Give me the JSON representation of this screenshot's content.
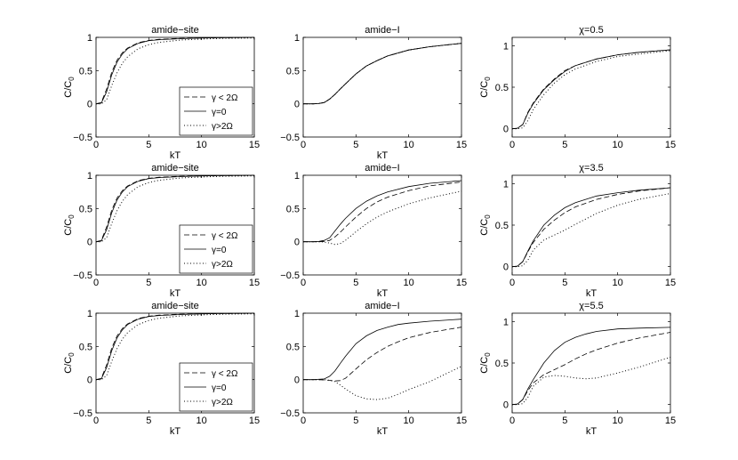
{
  "figure": {
    "legend_entries": [
      "γ < 2Ω",
      "γ=0",
      "γ>2Ω"
    ],
    "line_styles": {
      "γ < 2Ω": "dashed",
      "γ=0": "solid",
      "γ>2Ω": "dotted"
    }
  },
  "chart_data": [
    {
      "type": "line",
      "title": "amide−site",
      "xlabel": "kT",
      "ylabel": "C/C0",
      "xlim": [
        0,
        15
      ],
      "ylim": [
        -0.5,
        1
      ],
      "xticks": [
        "0",
        "5",
        "10",
        "15"
      ],
      "yticks": [
        "−0.5",
        "0",
        "0.5",
        "1"
      ],
      "legend": "bottom-right",
      "x": [
        0,
        0.5,
        1,
        1.5,
        2,
        2.5,
        3,
        4,
        5,
        6,
        8,
        10,
        12,
        15
      ],
      "series": [
        {
          "name": "γ < 2Ω",
          "style": "dashed",
          "values": [
            0,
            0.02,
            0.22,
            0.48,
            0.66,
            0.77,
            0.84,
            0.92,
            0.955,
            0.97,
            0.985,
            0.99,
            0.995,
            0.998
          ]
        },
        {
          "name": "γ=0",
          "style": "solid",
          "values": [
            0,
            0.01,
            0.18,
            0.44,
            0.63,
            0.75,
            0.83,
            0.91,
            0.95,
            0.965,
            0.98,
            0.99,
            0.995,
            0.998
          ]
        },
        {
          "name": "γ>2Ω",
          "style": "dotted",
          "values": [
            0,
            0,
            0.06,
            0.28,
            0.47,
            0.61,
            0.71,
            0.83,
            0.89,
            0.925,
            0.96,
            0.975,
            0.985,
            0.99
          ]
        }
      ]
    },
    {
      "type": "line",
      "title": "amide−I",
      "xlabel": "kT",
      "ylabel": "",
      "xlim": [
        0,
        15
      ],
      "ylim": [
        -0.5,
        1
      ],
      "xticks": [
        "0",
        "5",
        "10",
        "15"
      ],
      "yticks": [
        "−0.5",
        "0",
        "0.5",
        "1"
      ],
      "x": [
        0,
        1,
        1.5,
        2,
        2.5,
        3,
        3.5,
        4,
        5,
        6,
        7,
        8,
        10,
        12,
        15
      ],
      "series": [
        {
          "name": "γ < 2Ω",
          "style": "dashed",
          "values": [
            0,
            0,
            0.005,
            0.02,
            0.07,
            0.14,
            0.22,
            0.3,
            0.45,
            0.57,
            0.65,
            0.72,
            0.81,
            0.86,
            0.91
          ]
        },
        {
          "name": "γ=0",
          "style": "solid",
          "values": [
            0,
            0,
            0.005,
            0.02,
            0.07,
            0.14,
            0.22,
            0.3,
            0.45,
            0.57,
            0.65,
            0.72,
            0.81,
            0.86,
            0.91
          ]
        },
        {
          "name": "γ>2Ω",
          "style": "dotted",
          "values": [
            0,
            0,
            0.005,
            0.02,
            0.07,
            0.14,
            0.22,
            0.3,
            0.45,
            0.57,
            0.65,
            0.72,
            0.81,
            0.86,
            0.91
          ]
        }
      ]
    },
    {
      "type": "line",
      "title": "χ=0.5",
      "xlabel": "",
      "ylabel": "C/C0",
      "xlim": [
        0,
        15
      ],
      "ylim": [
        -0.1,
        1.1
      ],
      "xticks": [
        "0",
        "5",
        "10",
        "15"
      ],
      "yticks": [
        "0",
        "0.5",
        "1"
      ],
      "x": [
        0,
        0.5,
        1,
        1.5,
        2,
        3,
        4,
        5,
        6,
        8,
        10,
        12,
        15
      ],
      "series": [
        {
          "name": "γ < 2Ω",
          "style": "dashed",
          "values": [
            0,
            0.005,
            0.05,
            0.2,
            0.31,
            0.48,
            0.6,
            0.7,
            0.76,
            0.84,
            0.89,
            0.92,
            0.95
          ]
        },
        {
          "name": "γ=0",
          "style": "solid",
          "values": [
            0,
            0.005,
            0.05,
            0.19,
            0.3,
            0.47,
            0.59,
            0.69,
            0.76,
            0.84,
            0.89,
            0.92,
            0.95
          ]
        },
        {
          "name": "γ>2Ω",
          "style": "dotted",
          "values": [
            0,
            0,
            0.01,
            0.1,
            0.23,
            0.41,
            0.55,
            0.65,
            0.72,
            0.81,
            0.87,
            0.9,
            0.94
          ]
        }
      ]
    },
    {
      "type": "line",
      "title": "amide−site",
      "xlabel": "kT",
      "ylabel": "C/C0",
      "xlim": [
        0,
        15
      ],
      "ylim": [
        -0.5,
        1
      ],
      "xticks": [
        "0",
        "5",
        "10",
        "15"
      ],
      "yticks": [
        "−0.5",
        "0",
        "0.5",
        "1"
      ],
      "legend": "bottom-right",
      "x": [
        0,
        0.5,
        1,
        1.5,
        2,
        2.5,
        3,
        4,
        5,
        6,
        8,
        10,
        12,
        15
      ],
      "series": [
        {
          "name": "γ < 2Ω",
          "style": "dashed",
          "values": [
            0,
            0.02,
            0.22,
            0.48,
            0.66,
            0.77,
            0.84,
            0.92,
            0.955,
            0.97,
            0.985,
            0.99,
            0.995,
            0.998
          ]
        },
        {
          "name": "γ=0",
          "style": "solid",
          "values": [
            0,
            0.01,
            0.18,
            0.44,
            0.63,
            0.75,
            0.83,
            0.91,
            0.95,
            0.965,
            0.98,
            0.99,
            0.995,
            0.998
          ]
        },
        {
          "name": "γ>2Ω",
          "style": "dotted",
          "values": [
            0,
            0,
            0.06,
            0.28,
            0.47,
            0.61,
            0.71,
            0.83,
            0.89,
            0.925,
            0.96,
            0.975,
            0.985,
            0.99
          ]
        }
      ]
    },
    {
      "type": "line",
      "title": "amide−I",
      "xlabel": "kT",
      "ylabel": "",
      "xlim": [
        0,
        15
      ],
      "ylim": [
        -0.5,
        1
      ],
      "xticks": [
        "0",
        "5",
        "10",
        "15"
      ],
      "yticks": [
        "−0.5",
        "0",
        "0.5",
        "1"
      ],
      "x": [
        0,
        1,
        1.5,
        2,
        2.5,
        3,
        3.5,
        4,
        5,
        6,
        7,
        8,
        10,
        12,
        15
      ],
      "series": [
        {
          "name": "γ < 2Ω",
          "style": "dashed",
          "values": [
            0,
            0,
            0,
            0.005,
            0.02,
            0.07,
            0.14,
            0.22,
            0.37,
            0.5,
            0.6,
            0.67,
            0.77,
            0.84,
            0.9
          ]
        },
        {
          "name": "γ=0",
          "style": "solid",
          "values": [
            0,
            0,
            0.005,
            0.02,
            0.06,
            0.16,
            0.26,
            0.35,
            0.5,
            0.61,
            0.69,
            0.75,
            0.83,
            0.88,
            0.92
          ]
        },
        {
          "name": "γ>2Ω",
          "style": "dotted",
          "values": [
            0,
            0,
            0,
            -0.005,
            -0.02,
            -0.04,
            -0.03,
            0.02,
            0.15,
            0.27,
            0.37,
            0.45,
            0.57,
            0.66,
            0.76
          ]
        }
      ]
    },
    {
      "type": "line",
      "title": "χ=3.5",
      "xlabel": "kT",
      "ylabel": "C/C0",
      "xlim": [
        0,
        15
      ],
      "ylim": [
        -0.1,
        1.1
      ],
      "xticks": [
        "0",
        "5",
        "10",
        "15"
      ],
      "yticks": [
        "0",
        "0.5",
        "1"
      ],
      "x": [
        0,
        0.5,
        1,
        1.5,
        2,
        3,
        4,
        5,
        6,
        8,
        10,
        12,
        15
      ],
      "series": [
        {
          "name": "γ < 2Ω",
          "style": "dashed",
          "values": [
            0,
            0.005,
            0.06,
            0.18,
            0.29,
            0.45,
            0.56,
            0.65,
            0.72,
            0.81,
            0.87,
            0.91,
            0.95
          ]
        },
        {
          "name": "γ=0",
          "style": "solid",
          "values": [
            0,
            0.005,
            0.06,
            0.19,
            0.31,
            0.5,
            0.62,
            0.71,
            0.77,
            0.85,
            0.89,
            0.92,
            0.95
          ]
        },
        {
          "name": "γ>2Ω",
          "style": "dotted",
          "values": [
            0,
            0,
            0.01,
            0.08,
            0.2,
            0.32,
            0.38,
            0.44,
            0.51,
            0.64,
            0.74,
            0.81,
            0.88
          ]
        }
      ]
    },
    {
      "type": "line",
      "title": "amide−site",
      "xlabel": "kT",
      "ylabel": "C/C0",
      "xlim": [
        0,
        15
      ],
      "ylim": [
        -0.5,
        1
      ],
      "xticks": [
        "0",
        "5",
        "10",
        "15"
      ],
      "yticks": [
        "−0.5",
        "0",
        "0.5",
        "1"
      ],
      "legend": "bottom-right",
      "x": [
        0,
        0.5,
        1,
        1.5,
        2,
        2.5,
        3,
        4,
        5,
        6,
        8,
        10,
        12,
        15
      ],
      "series": [
        {
          "name": "γ < 2Ω",
          "style": "dashed",
          "values": [
            0,
            0.02,
            0.22,
            0.48,
            0.66,
            0.77,
            0.84,
            0.92,
            0.955,
            0.97,
            0.985,
            0.99,
            0.995,
            0.998
          ]
        },
        {
          "name": "γ=0",
          "style": "solid",
          "values": [
            0,
            0.01,
            0.18,
            0.44,
            0.63,
            0.75,
            0.83,
            0.91,
            0.95,
            0.965,
            0.98,
            0.99,
            0.995,
            0.998
          ]
        },
        {
          "name": "γ>2Ω",
          "style": "dotted",
          "values": [
            0,
            0,
            0.06,
            0.28,
            0.47,
            0.61,
            0.71,
            0.83,
            0.89,
            0.925,
            0.96,
            0.975,
            0.985,
            0.99
          ]
        }
      ]
    },
    {
      "type": "line",
      "title": "amide−I",
      "xlabel": "kT",
      "ylabel": "",
      "xlim": [
        0,
        15
      ],
      "ylim": [
        -0.5,
        1
      ],
      "xticks": [
        "0",
        "5",
        "10",
        "15"
      ],
      "yticks": [
        "−0.5",
        "0",
        "0.5",
        "1"
      ],
      "x": [
        0,
        1,
        2,
        2.5,
        3,
        3.5,
        4,
        5,
        6,
        7,
        8,
        9,
        10,
        12,
        15
      ],
      "series": [
        {
          "name": "γ < 2Ω",
          "style": "dashed",
          "values": [
            0,
            0,
            -0.005,
            -0.01,
            -0.02,
            -0.015,
            0.02,
            0.16,
            0.3,
            0.41,
            0.5,
            0.57,
            0.63,
            0.71,
            0.79
          ]
        },
        {
          "name": "γ=0",
          "style": "solid",
          "values": [
            0,
            0,
            0.01,
            0.05,
            0.13,
            0.24,
            0.35,
            0.54,
            0.66,
            0.74,
            0.79,
            0.83,
            0.85,
            0.88,
            0.91
          ]
        },
        {
          "name": "γ>2Ω",
          "style": "dotted",
          "values": [
            0,
            0,
            0,
            -0.01,
            -0.03,
            -0.08,
            -0.14,
            -0.24,
            -0.29,
            -0.3,
            -0.28,
            -0.22,
            -0.15,
            -0.03,
            0.2
          ]
        }
      ]
    },
    {
      "type": "line",
      "title": "χ=5.5",
      "xlabel": "kT",
      "ylabel": "C/C0",
      "xlim": [
        0,
        15
      ],
      "ylim": [
        -0.1,
        1.1
      ],
      "xticks": [
        "0",
        "5",
        "10",
        "15"
      ],
      "yticks": [
        "0",
        "0.5",
        "1"
      ],
      "x": [
        0,
        0.5,
        1,
        1.5,
        2,
        3,
        4,
        5,
        6,
        7,
        8,
        10,
        12,
        15
      ],
      "series": [
        {
          "name": "γ < 2Ω",
          "style": "dashed",
          "values": [
            0,
            0.005,
            0.06,
            0.17,
            0.26,
            0.36,
            0.42,
            0.48,
            0.55,
            0.61,
            0.66,
            0.74,
            0.8,
            0.87
          ]
        },
        {
          "name": "γ=0",
          "style": "solid",
          "values": [
            0,
            0.005,
            0.06,
            0.19,
            0.3,
            0.5,
            0.65,
            0.75,
            0.81,
            0.85,
            0.88,
            0.91,
            0.92,
            0.93
          ]
        },
        {
          "name": "γ>2Ω",
          "style": "dotted",
          "values": [
            0,
            0,
            0.01,
            0.09,
            0.22,
            0.33,
            0.35,
            0.34,
            0.32,
            0.31,
            0.32,
            0.38,
            0.45,
            0.57
          ]
        }
      ]
    }
  ]
}
